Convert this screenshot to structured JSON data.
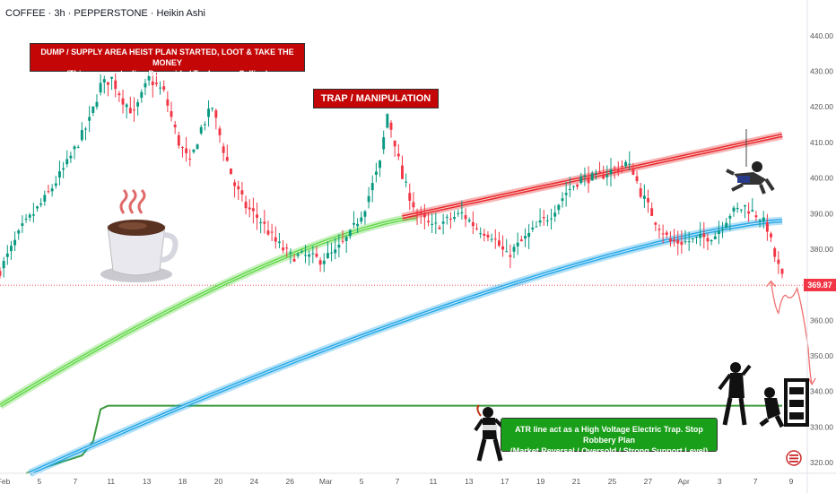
{
  "header": {
    "symbol_title": "COFFEE · 3h · PEPPERSTONE · Heikin Ashi"
  },
  "price_label": "369.87",
  "colors": {
    "bull": "#089981",
    "bear": "#f23645",
    "upper_band": "#e8272a",
    "lower_band": "#29a9e8",
    "green_band": "#63d84a",
    "atr_line": "#3a9a3a",
    "note_red": "#c40606",
    "note_green": "#1a9f1a"
  },
  "annotations": {
    "dump_line1": "DUMP / SUPPLY AREA HEIST PLAN STARTED, LOOT & TAKE THE MONEY",
    "dump_line2": "(Thieves are stealing Downside / Traders are Selling)",
    "trap": "TRAP / MANIPULATION",
    "atr_line1": "ATR line act as a High Voltage Electric Trap. Stop Robbery Plan",
    "atr_line2": "(Market Reversal / Oversold / Strong Support Level)"
  },
  "icons": [
    "coffee-cup-icon",
    "thief-climbing-icon",
    "thief-standing-icon",
    "thief-running-icon",
    "thief-with-vault-icon",
    "flag-icon"
  ],
  "chart_data": {
    "type": "candlestick",
    "style": "Heikin Ashi",
    "ylim": [
      317,
      445
    ],
    "yticks": [
      320,
      330,
      340,
      350,
      360,
      370,
      380,
      390,
      400,
      410,
      420,
      430,
      440
    ],
    "ytick_labels": [
      "320.00",
      "330.00",
      "340.00",
      "350.00",
      "360.00",
      "370.00",
      "380.00",
      "390.00",
      "400.00",
      "410.00",
      "420.00",
      "430.00",
      "440.00"
    ],
    "x_tick_labels": [
      "Feb",
      "5",
      "7",
      "11",
      "13",
      "18",
      "20",
      "24",
      "26",
      "Mar",
      "5",
      "7",
      "11",
      "13",
      "17",
      "19",
      "21",
      "25",
      "27",
      "Apr",
      "3",
      "7",
      "9"
    ],
    "current_price": 369.87,
    "trend_path": [
      [
        0,
        374
      ],
      [
        6,
        386
      ],
      [
        12,
        394
      ],
      [
        18,
        404
      ],
      [
        24,
        416
      ],
      [
        27,
        426
      ],
      [
        30,
        428
      ],
      [
        33,
        422
      ],
      [
        36,
        418
      ],
      [
        40,
        428
      ],
      [
        44,
        424
      ],
      [
        48,
        410
      ],
      [
        51,
        404
      ],
      [
        54,
        414
      ],
      [
        57,
        420
      ],
      [
        60,
        408
      ],
      [
        63,
        398
      ],
      [
        66,
        392
      ],
      [
        70,
        388
      ],
      [
        74,
        382
      ],
      [
        78,
        378
      ],
      [
        82,
        378
      ],
      [
        86,
        377
      ],
      [
        90,
        379
      ],
      [
        94,
        384
      ],
      [
        98,
        392
      ],
      [
        102,
        404
      ],
      [
        104,
        418
      ],
      [
        106,
        410
      ],
      [
        108,
        400
      ],
      [
        112,
        390
      ],
      [
        116,
        386
      ],
      [
        120,
        388
      ],
      [
        124,
        390
      ],
      [
        128,
        386
      ],
      [
        132,
        384
      ],
      [
        136,
        378
      ],
      [
        140,
        382
      ],
      [
        144,
        386
      ],
      [
        148,
        390
      ],
      [
        152,
        396
      ],
      [
        156,
        400
      ],
      [
        160,
        400
      ],
      [
        164,
        402
      ],
      [
        168,
        404
      ],
      [
        170,
        402
      ],
      [
        172,
        396
      ],
      [
        176,
        388
      ],
      [
        180,
        382
      ],
      [
        184,
        382
      ],
      [
        188,
        383
      ],
      [
        192,
        384
      ],
      [
        196,
        390
      ],
      [
        200,
        392
      ],
      [
        204,
        389
      ],
      [
        206,
        386
      ],
      [
        208,
        378
      ],
      [
        210,
        372
      ]
    ],
    "upper_band": {
      "name": "",
      "x0": 108,
      "x1": 210,
      "y0": 389,
      "y1": 412
    },
    "lower_band": {
      "name": "",
      "x0": 8,
      "x1": 210,
      "y0": 317,
      "y1": 388
    },
    "green_band": {
      "name": "",
      "x0": 0,
      "x1": 112,
      "y0": 336,
      "y1": 389
    },
    "atr_line": [
      [
        7,
        317
      ],
      [
        22,
        322
      ],
      [
        25,
        326
      ],
      [
        27,
        335
      ],
      [
        29,
        336
      ],
      [
        210,
        336
      ]
    ],
    "projection": [
      [
        207,
        371
      ],
      [
        209,
        362
      ],
      [
        211,
        367
      ],
      [
        214,
        369
      ],
      [
        217,
        352
      ],
      [
        218,
        342
      ]
    ]
  }
}
